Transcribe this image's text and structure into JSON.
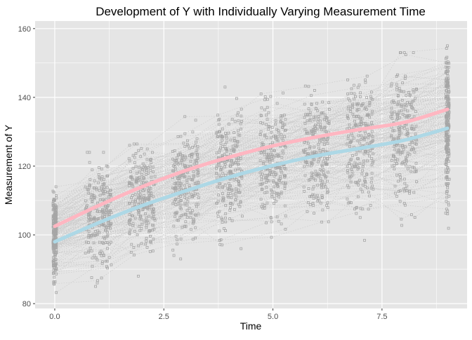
{
  "chart_data": {
    "type": "scatter",
    "title": "Development of Y with Individually Varying Measurement Time",
    "xlabel": "Time",
    "ylabel": "Measurement of Y",
    "xlim": [
      -0.45,
      9.45
    ],
    "ylim": [
      78.6,
      162.2
    ],
    "x_ticks": [
      0.0,
      2.5,
      5.0,
      7.5
    ],
    "x_tick_labels": [
      "0.0",
      "2.5",
      "5.0",
      "7.5"
    ],
    "y_ticks": [
      80,
      100,
      120,
      140,
      160
    ],
    "y_tick_labels": [
      "80",
      "100",
      "120",
      "140",
      "160"
    ],
    "grid": true,
    "panel_background": "#e5e5e5",
    "grid_color": "#ffffff",
    "points_color": "#a6a6a6",
    "individual_lines_color": "#cccccc",
    "measurement_waves": [
      {
        "time": 0,
        "mean": 100,
        "min": 82,
        "max": 114
      },
      {
        "time": 1,
        "mean": 105,
        "min": 85,
        "max": 124
      },
      {
        "time": 2,
        "mean": 110,
        "min": 88,
        "max": 128
      },
      {
        "time": 3,
        "mean": 114,
        "min": 93,
        "max": 136
      },
      {
        "time": 4,
        "mean": 118,
        "min": 96,
        "max": 143
      },
      {
        "time": 5,
        "mean": 121,
        "min": 97,
        "max": 143
      },
      {
        "time": 6,
        "mean": 124,
        "min": 99,
        "max": 146
      },
      {
        "time": 7,
        "mean": 126,
        "min": 98,
        "max": 150
      },
      {
        "time": 8,
        "mean": 128,
        "min": 98,
        "max": 153
      },
      {
        "time": 9,
        "mean": 131,
        "min": 101,
        "max": 158
      }
    ],
    "series": [
      {
        "color": "#ffb6c1",
        "x": [
          0,
          1,
          2,
          3,
          4,
          5,
          6,
          7,
          8,
          9
        ],
        "values": [
          102.5,
          108.5,
          114,
          118.7,
          122.6,
          125.9,
          128.5,
          130.7,
          132.7,
          136.5
        ]
      },
      {
        "color": "#add8e6",
        "x": [
          0,
          1,
          2,
          3,
          4,
          5,
          6,
          7,
          8,
          9
        ],
        "values": [
          98,
          103.5,
          108.5,
          112.8,
          116.8,
          120.2,
          123,
          125.2,
          127.5,
          131
        ]
      }
    ]
  }
}
